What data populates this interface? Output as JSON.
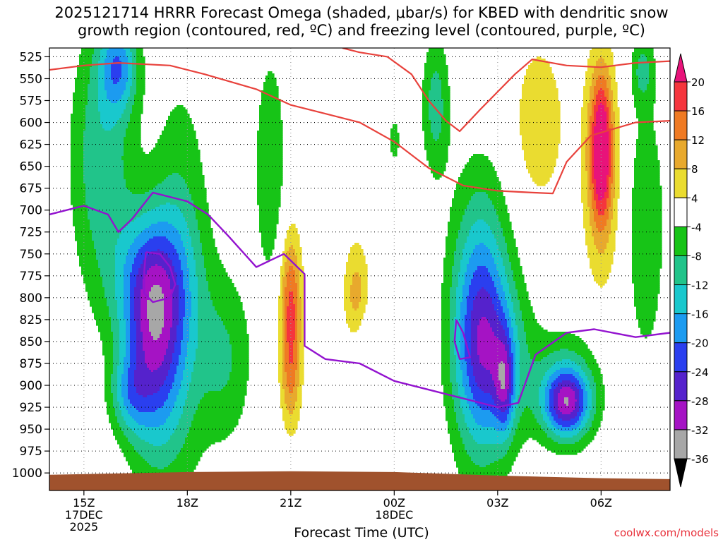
{
  "title_line1": "2025121714 HRRR Forecast Omega (shaded, μbar/s) for KBED with dendritic snow",
  "title_line2": "growth region (contoured, red, ºC) and freezing level (contoured, purple, ºC)",
  "credit": "coolwx.com/models",
  "colors": {
    "ground": "#a0522d",
    "dgz_contour": "#e8423c",
    "freezing_contour": "#9313cf",
    "grid": "#000000"
  },
  "chart_data": {
    "type": "heatmap",
    "title": "2025121714 HRRR Forecast Omega (shaded, μbar/s) for KBED with dendritic snow growth region (contoured, red, ºC) and freezing level (contoured, purple, ºC)",
    "xlabel": "Forecast Time (UTC)",
    "ylabel": "",
    "x_range_hours": [
      -1.0,
      17.0
    ],
    "y_range_hPa": [
      515,
      1020
    ],
    "y_ticks": [
      525,
      550,
      575,
      600,
      625,
      650,
      675,
      700,
      725,
      750,
      775,
      800,
      825,
      850,
      875,
      900,
      925,
      950,
      975,
      1000
    ],
    "x_ticks": [
      {
        "hour": 0,
        "lines": [
          "15Z",
          "17DEC",
          "2025"
        ]
      },
      {
        "hour": 3,
        "lines": [
          "18Z"
        ]
      },
      {
        "hour": 6,
        "lines": [
          "21Z"
        ]
      },
      {
        "hour": 9,
        "lines": [
          "00Z",
          "18DEC"
        ]
      },
      {
        "hour": 12,
        "lines": [
          "03Z"
        ]
      },
      {
        "hour": 15,
        "lines": [
          "06Z"
        ]
      }
    ],
    "grid": true,
    "legend_placement": "right",
    "colorbar": {
      "labels": [
        "20",
        "16",
        "12",
        "8",
        "4",
        "-4",
        "-8",
        "-12",
        "-16",
        "-20",
        "-24",
        "-28",
        "-32",
        "-36"
      ],
      "bins": [
        {
          "lo": 20,
          "hi": null,
          "color": "#e8137a"
        },
        {
          "lo": 16,
          "hi": 20,
          "color": "#f5353d"
        },
        {
          "lo": 12,
          "hi": 16,
          "color": "#ef7a23"
        },
        {
          "lo": 8,
          "hi": 12,
          "color": "#e8a92d"
        },
        {
          "lo": 4,
          "hi": 8,
          "color": "#eadc30"
        },
        {
          "lo": -4,
          "hi": 4,
          "color": "#ffffff"
        },
        {
          "lo": -8,
          "hi": -4,
          "color": "#17c417"
        },
        {
          "lo": -12,
          "hi": -8,
          "color": "#21c48a"
        },
        {
          "lo": -16,
          "hi": -12,
          "color": "#19c8cd"
        },
        {
          "lo": -20,
          "hi": -16,
          "color": "#1c9bf0"
        },
        {
          "lo": -24,
          "hi": -20,
          "color": "#2a3fef"
        },
        {
          "lo": -28,
          "hi": -24,
          "color": "#5522cc"
        },
        {
          "lo": -32,
          "hi": -28,
          "color": "#a513c4"
        },
        {
          "lo": -36,
          "hi": -32,
          "color": "#a7a7a7"
        },
        {
          "lo": null,
          "hi": -36,
          "color": "#000000"
        }
      ]
    },
    "omega_centers": [
      {
        "hour": 1.0,
        "hPa": 535,
        "value": -16,
        "sx": 0.55,
        "sy": 55
      },
      {
        "hour": 0.5,
        "hPa": 640,
        "value": -11,
        "sx": 0.9,
        "sy": 150
      },
      {
        "hour": 2.0,
        "hPa": 860,
        "value": -22,
        "sx": 0.85,
        "sy": 120
      },
      {
        "hour": 1.9,
        "hPa": 780,
        "value": -13,
        "sx": 1.1,
        "sy": 80
      },
      {
        "hour": 1.3,
        "hPa": 910,
        "value": -10,
        "sx": 0.55,
        "sy": 45
      },
      {
        "hour": 2.8,
        "hPa": 780,
        "value": -9,
        "sx": 0.85,
        "sy": 220
      },
      {
        "hour": 4.1,
        "hPa": 870,
        "value": -8,
        "sx": 0.8,
        "sy": 100
      },
      {
        "hour": 5.4,
        "hPa": 650,
        "value": -8,
        "sx": 0.45,
        "sy": 130
      },
      {
        "hour": 6.0,
        "hPa": 810,
        "value": 17,
        "sx": 0.32,
        "sy": 85
      },
      {
        "hour": 6.0,
        "hPa": 900,
        "value": 8,
        "sx": 0.3,
        "sy": 60
      },
      {
        "hour": 7.9,
        "hPa": 800,
        "value": 10,
        "sx": 0.38,
        "sy": 65
      },
      {
        "hour": 9.0,
        "hPa": 620,
        "value": -5,
        "sx": 0.25,
        "sy": 40
      },
      {
        "hour": 8.2,
        "hPa": 850,
        "value": -5,
        "sx": 0.5,
        "sy": 40
      },
      {
        "hour": 10.2,
        "hPa": 580,
        "value": -10,
        "sx": 0.4,
        "sy": 80
      },
      {
        "hour": 11.5,
        "hPa": 830,
        "value": -22,
        "sx": 0.85,
        "sy": 150
      },
      {
        "hour": 12.0,
        "hPa": 870,
        "value": -10,
        "sx": 1.0,
        "sy": 90
      },
      {
        "hour": 12.2,
        "hPa": 900,
        "value": -14,
        "sx": 0.28,
        "sy": 55
      },
      {
        "hour": 14.0,
        "hPa": 920,
        "value": -24,
        "sx": 0.65,
        "sy": 38
      },
      {
        "hour": 14.0,
        "hPa": 900,
        "value": -9,
        "sx": 1.05,
        "sy": 65
      },
      {
        "hour": 13.2,
        "hPa": 600,
        "value": 7,
        "sx": 0.8,
        "sy": 100
      },
      {
        "hour": 15.0,
        "hPa": 630,
        "value": 19,
        "sx": 0.3,
        "sy": 80
      },
      {
        "hour": 15.0,
        "hPa": 650,
        "value": 10,
        "sx": 0.55,
        "sy": 140
      },
      {
        "hour": 16.3,
        "hPa": 720,
        "value": -8,
        "sx": 0.55,
        "sy": 150
      },
      {
        "hour": 16.2,
        "hPa": 540,
        "value": -8,
        "sx": 0.35,
        "sy": 40
      }
    ],
    "dgz_contours": [
      {
        "name": "upper",
        "points": [
          [
            -1.0,
            540
          ],
          [
            0.0,
            535
          ],
          [
            1.0,
            532
          ],
          [
            2.5,
            535
          ],
          [
            3.5,
            545
          ],
          [
            5.0,
            562
          ],
          [
            6.0,
            580
          ],
          [
            7.0,
            590
          ],
          [
            8.0,
            600
          ],
          [
            9.0,
            622
          ],
          [
            10.0,
            652
          ],
          [
            11.0,
            672
          ],
          [
            12.0,
            678
          ],
          [
            13.0,
            680
          ],
          [
            13.6,
            681
          ],
          [
            14.0,
            645
          ],
          [
            14.7,
            615
          ],
          [
            16.0,
            600
          ],
          [
            17.0,
            598
          ]
        ]
      },
      {
        "name": "lower",
        "points": [
          [
            7.5,
            515
          ],
          [
            8.0,
            520
          ],
          [
            8.8,
            525
          ],
          [
            9.5,
            545
          ],
          [
            10.0,
            575
          ],
          [
            10.5,
            598
          ],
          [
            10.9,
            610
          ],
          [
            11.5,
            585
          ],
          [
            12.5,
            545
          ],
          [
            13.0,
            528
          ],
          [
            14.0,
            535
          ],
          [
            15.0,
            537
          ],
          [
            16.0,
            532
          ],
          [
            17.0,
            530
          ]
        ]
      }
    ],
    "freezing_contours": [
      {
        "name": "freezing-level-main",
        "points": [
          [
            -1.0,
            705
          ],
          [
            0.0,
            695
          ],
          [
            0.7,
            705
          ],
          [
            1.0,
            725
          ],
          [
            1.4,
            710
          ],
          [
            2.0,
            680
          ],
          [
            3.0,
            690
          ],
          [
            3.6,
            705
          ],
          [
            4.2,
            730
          ],
          [
            5.0,
            765
          ],
          [
            5.8,
            750
          ],
          [
            6.4,
            773
          ],
          [
            6.4,
            855
          ],
          [
            7.0,
            870
          ],
          [
            8.0,
            875
          ],
          [
            9.0,
            895
          ],
          [
            10.0,
            905
          ],
          [
            11.0,
            915
          ],
          [
            12.0,
            925
          ],
          [
            12.6,
            920
          ],
          [
            13.1,
            865
          ],
          [
            14.0,
            840
          ],
          [
            14.8,
            836
          ],
          [
            16.0,
            845
          ],
          [
            17.0,
            840
          ]
        ]
      },
      {
        "name": "freezing-loop-1",
        "points": [
          [
            1.8,
            748
          ],
          [
            2.2,
            750
          ],
          [
            2.5,
            765
          ],
          [
            2.65,
            785
          ],
          [
            2.5,
            800
          ],
          [
            2.0,
            805
          ],
          [
            1.75,
            795
          ],
          [
            1.75,
            770
          ],
          [
            1.8,
            748
          ]
        ]
      },
      {
        "name": "freezing-loop-2",
        "points": [
          [
            10.8,
            825
          ],
          [
            11.0,
            840
          ],
          [
            11.2,
            868
          ],
          [
            10.9,
            870
          ],
          [
            10.75,
            850
          ],
          [
            10.8,
            825
          ]
        ]
      }
    ]
  }
}
